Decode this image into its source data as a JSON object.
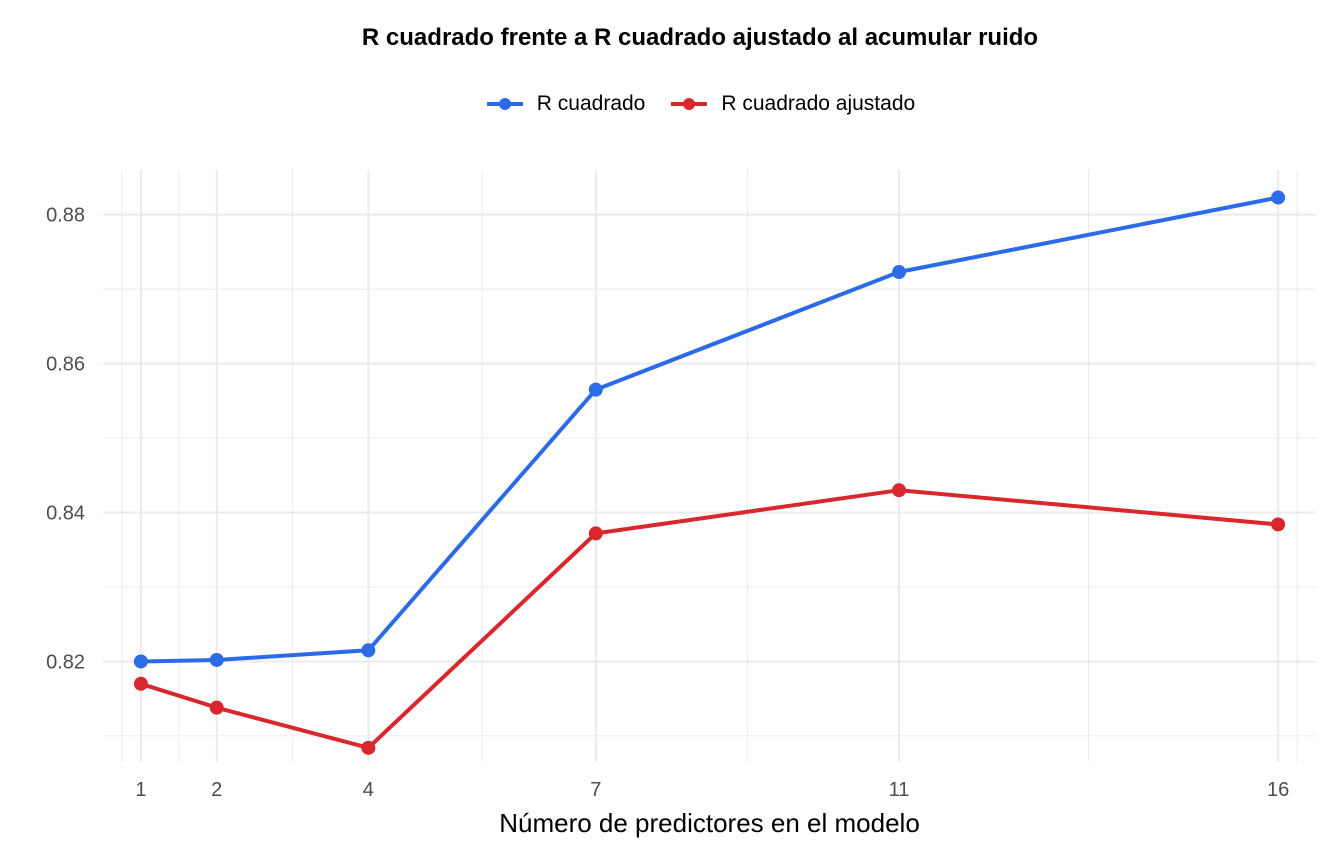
{
  "chart_data": {
    "type": "line",
    "title": "R cuadrado frente a R cuadrado ajustado al acumular ruido",
    "xlabel": "Número de predictores en el modelo",
    "ylabel": "",
    "x": [
      1,
      2,
      4,
      7,
      11,
      16
    ],
    "x_tick_labels": [
      "1",
      "2",
      "4",
      "7",
      "11",
      "16"
    ],
    "y_tick_labels": [
      "0.82",
      "0.84",
      "0.86",
      "0.88"
    ],
    "y_ticks": [
      0.82,
      0.84,
      0.86,
      0.88
    ],
    "xlim": [
      0.5,
      16.5
    ],
    "ylim": [
      0.8065,
      0.886
    ],
    "grid": true,
    "legend_position": "top",
    "series": [
      {
        "name": "R cuadrado",
        "color": "#2C6BE8",
        "values": [
          0.82,
          0.8202,
          0.8215,
          0.8565,
          0.8723,
          0.8823
        ]
      },
      {
        "name": "R cuadrado ajustado",
        "color": "#D9272E",
        "values": [
          0.817,
          0.8138,
          0.8084,
          0.8372,
          0.843,
          0.8384
        ]
      }
    ]
  }
}
